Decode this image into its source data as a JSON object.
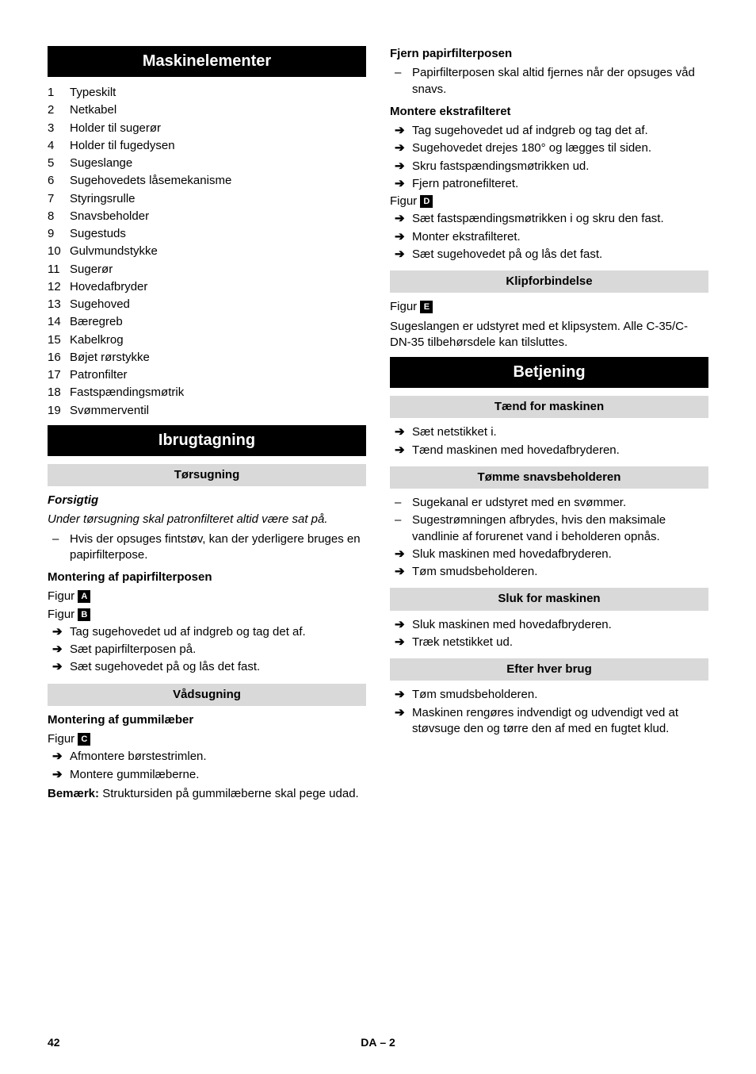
{
  "left": {
    "h1_elements": "Maskinelementer",
    "elements": [
      "Typeskilt",
      "Netkabel",
      "Holder til sugerør",
      "Holder til fugedysen",
      "Sugeslange",
      "Sugehovedets låsemekanisme",
      "Styringsrulle",
      "Snavsbeholder",
      "Sugestuds",
      "Gulvmundstykke",
      "Sugerør",
      "Hovedafbryder",
      "Sugehoved",
      "Bæregreb",
      "Kabelkrog",
      "Bøjet rørstykke",
      "Patronfilter",
      "Fastspændingsmøtrik",
      "Svømmerventil"
    ],
    "h1_ibrug": "Ibrugtagning",
    "h2_tor": "Tørsugning",
    "forsigtig": "Forsigtig",
    "forsigtig_text": "Under tørsugning skal patronfilteret altid være sat på.",
    "tor_dash": "Hvis der opsuges fintstøv, kan der yderligere bruges en papirfilterpose.",
    "h3_mont_papir": "Montering af papirfilterposen",
    "fig_label": "Figur",
    "fig_a": "A",
    "fig_b": "B",
    "mont_papir_steps": [
      "Tag sugehovedet ud af indgreb og tag det af.",
      "Sæt papirfilterposen på.",
      "Sæt sugehovedet på og lås det fast."
    ],
    "h2_vad": "Vådsugning",
    "h3_mont_gummi": "Montering af gummilæber",
    "fig_c": "C",
    "mont_gummi_steps": [
      "Afmontere børstestrimlen.",
      "Montere gummilæberne."
    ],
    "bemaerk_label": "Bemærk:",
    "bemaerk_text": " Struktursiden på gummilæberne skal pege udad."
  },
  "right": {
    "h3_fjern": "Fjern papirfilterposen",
    "fjern_dash": "Papirfilterposen skal altid fjernes når der opsuges våd snavs.",
    "h3_mont_ekstra": "Montere ekstrafilteret",
    "ekstra_steps_1": [
      "Tag sugehovedet ud af indgreb og tag det af.",
      "Sugehovedet drejes 180° og lægges til siden.",
      "Skru fastspændingsmøtrikken ud.",
      "Fjern patronefilteret."
    ],
    "fig_d": "D",
    "ekstra_steps_2": [
      "Sæt fastspændingsmøtrikken i og skru den fast.",
      "Monter ekstrafilteret.",
      "Sæt sugehovedet på og lås det fast."
    ],
    "h2_klip": "Klipforbindelse",
    "fig_e": "E",
    "klip_text": "Sugeslangen er udstyret med et klipsystem. Alle C-35/C-DN-35 tilbehørsdele kan tilsluttes.",
    "h1_betj": "Betjening",
    "h2_taend": "Tænd for maskinen",
    "taend_steps": [
      "Sæt netstikket i.",
      "Tænd maskinen med hovedafbryderen."
    ],
    "h2_tomme": "Tømme snavsbeholderen",
    "tomme_dashes": [
      "Sugekanal er udstyret med en svømmer.",
      "Sugestrømningen afbrydes, hvis den maksimale vandlinie af forurenet vand i beholderen opnås."
    ],
    "tomme_steps": [
      "Sluk maskinen med hovedafbryderen.",
      "Tøm smudsbeholderen."
    ],
    "h2_sluk": "Sluk for maskinen",
    "sluk_steps": [
      "Sluk maskinen med hovedafbryderen.",
      "Træk netstikket ud."
    ],
    "h2_efter": "Efter hver brug",
    "efter_steps": [
      "Tøm smudsbeholderen.",
      "Maskinen rengøres indvendigt og udvendigt ved at støvsuge den og tørre den af med en fugtet klud."
    ]
  },
  "footer": {
    "pagenum": "42",
    "lang": "DA",
    "seq": "– 2"
  }
}
